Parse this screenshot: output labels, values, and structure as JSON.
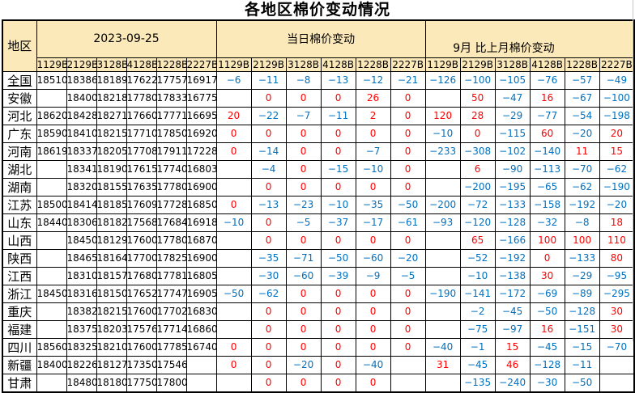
{
  "title": "各地区棉价变动情况",
  "table": {
    "region_header": "地区",
    "sections": [
      {
        "label": "2023-09-25",
        "key": "prices"
      },
      {
        "label": "当日棉价变动",
        "key": "daily"
      },
      {
        "label": "9月 比上月棉价变动",
        "key": "monthly"
      }
    ],
    "grade_columns": [
      "1129B",
      "2129B",
      "3128B",
      "4128B",
      "1228B",
      "2227B"
    ],
    "colors": {
      "header_bg": "#FCE9BA",
      "negative": "#0070C0",
      "nonnegative": "#FF0000",
      "border": "#000000",
      "gridline": "#C9C9C9"
    },
    "rows": [
      {
        "region": "全国",
        "link": true,
        "prices": [
          18510,
          18386,
          18189,
          17622,
          17757,
          16917
        ],
        "daily": [
          -6,
          -11,
          -8,
          -13,
          -12,
          -21
        ],
        "monthly": [
          -126,
          -100,
          -105,
          -76,
          -57,
          -49
        ]
      },
      {
        "region": "安徽",
        "link": false,
        "prices": [
          null,
          18400,
          18218,
          17780,
          17833,
          16775
        ],
        "daily": [
          null,
          0,
          0,
          0,
          26,
          0
        ],
        "monthly": [
          null,
          50,
          -47,
          16,
          -67,
          -100
        ]
      },
      {
        "region": "河北",
        "link": false,
        "prices": [
          18620,
          18428,
          18271,
          17660,
          17771,
          16695
        ],
        "daily": [
          20,
          -22,
          -7,
          -11,
          2,
          0
        ],
        "monthly": [
          120,
          28,
          -29,
          -77,
          -54,
          -198
        ]
      },
      {
        "region": "广东",
        "link": false,
        "prices": [
          18590,
          18410,
          18215,
          17710,
          17850,
          16920
        ],
        "daily": [
          0,
          0,
          0,
          0,
          0,
          0
        ],
        "monthly": [
          -10,
          0,
          -115,
          60,
          -20,
          20
        ]
      },
      {
        "region": "河南",
        "link": false,
        "prices": [
          18619,
          18337,
          18205,
          17708,
          17911,
          17228
        ],
        "daily": [
          0,
          -14,
          0,
          0,
          -7,
          0
        ],
        "monthly": [
          -233,
          -308,
          -102,
          -140,
          11,
          15
        ]
      },
      {
        "region": "湖北",
        "link": false,
        "prices": [
          null,
          18341,
          18190,
          17615,
          17740,
          16803
        ],
        "daily": [
          null,
          -4,
          0,
          -15,
          -10,
          0
        ],
        "monthly": [
          null,
          6,
          -90,
          -113,
          -70,
          -62
        ]
      },
      {
        "region": "湖南",
        "link": false,
        "prices": [
          null,
          18320,
          18155,
          17635,
          17780,
          16900
        ],
        "daily": [
          null,
          0,
          0,
          0,
          0,
          0
        ],
        "monthly": [
          null,
          -200,
          -195,
          -65,
          -62,
          -190
        ]
      },
      {
        "region": "江苏",
        "link": false,
        "prices": [
          18500,
          18414,
          18185,
          17609,
          17728,
          16850
        ],
        "daily": [
          0,
          -13,
          -23,
          -10,
          -35,
          -50
        ],
        "monthly": [
          -200,
          -72,
          -133,
          -158,
          -192,
          -20
        ]
      },
      {
        "region": "山东",
        "link": false,
        "prices": [
          18440,
          18306,
          18182,
          17568,
          17684,
          16918
        ],
        "daily": [
          -10,
          0,
          -5,
          -37,
          -17,
          -61
        ],
        "monthly": [
          -93,
          -120,
          -128,
          -32,
          -8,
          18
        ]
      },
      {
        "region": "山西",
        "link": false,
        "prices": [
          null,
          18450,
          18129,
          17600,
          17780,
          16870
        ],
        "daily": [
          null,
          0,
          0,
          0,
          0,
          0
        ],
        "monthly": [
          null,
          65,
          -166,
          100,
          100,
          110
        ]
      },
      {
        "region": "陕西",
        "link": false,
        "prices": [
          null,
          18465,
          18164,
          17700,
          17825,
          16900
        ],
        "daily": [
          null,
          -35,
          -71,
          -50,
          -60,
          -20
        ],
        "monthly": [
          null,
          -52,
          -192,
          0,
          -133,
          80
        ]
      },
      {
        "region": "江西",
        "link": false,
        "prices": [
          null,
          18310,
          18157,
          17680,
          17781,
          16805
        ],
        "daily": [
          null,
          -30,
          -60,
          -39,
          -9,
          -5
        ],
        "monthly": [
          null,
          -10,
          -138,
          30,
          -29,
          -95
        ]
      },
      {
        "region": "浙江",
        "link": false,
        "prices": [
          18450,
          18316,
          18150,
          17652,
          17747,
          16905
        ],
        "daily": [
          -50,
          -62,
          0,
          0,
          0,
          0
        ],
        "monthly": [
          -190,
          -141,
          -172,
          -69,
          -89,
          -295
        ]
      },
      {
        "region": "重庆",
        "link": false,
        "prices": [
          null,
          18382,
          18215,
          17600,
          17702,
          16830
        ],
        "daily": [
          null,
          0,
          0,
          0,
          0,
          0
        ],
        "monthly": [
          null,
          -2,
          -45,
          -50,
          -128,
          30
        ]
      },
      {
        "region": "福建",
        "link": false,
        "prices": [
          null,
          18375,
          18203,
          17576,
          17714,
          16860
        ],
        "daily": [
          null,
          0,
          0,
          0,
          0,
          0
        ],
        "monthly": [
          null,
          -75,
          -97,
          16,
          -151,
          30
        ]
      },
      {
        "region": "四川",
        "link": false,
        "prices": [
          18560,
          18325,
          18210,
          17600,
          17785,
          16740
        ],
        "daily": [
          0,
          0,
          0,
          0,
          0,
          0
        ],
        "monthly": [
          -40,
          -1,
          15,
          -45,
          -15,
          -70
        ]
      },
      {
        "region": "新疆",
        "link": false,
        "prices": [
          18400,
          18226,
          18127,
          17350,
          17546,
          null
        ],
        "daily": [
          0,
          0,
          -20,
          0,
          -40,
          null
        ],
        "monthly": [
          31,
          -45,
          46,
          -128,
          -11,
          null
        ]
      },
      {
        "region": "甘肃",
        "link": false,
        "prices": [
          null,
          18480,
          18180,
          17750,
          17800,
          null
        ],
        "daily": [
          null,
          0,
          0,
          0,
          0,
          null
        ],
        "monthly": [
          null,
          -135,
          -240,
          -30,
          -50,
          null
        ]
      }
    ]
  }
}
